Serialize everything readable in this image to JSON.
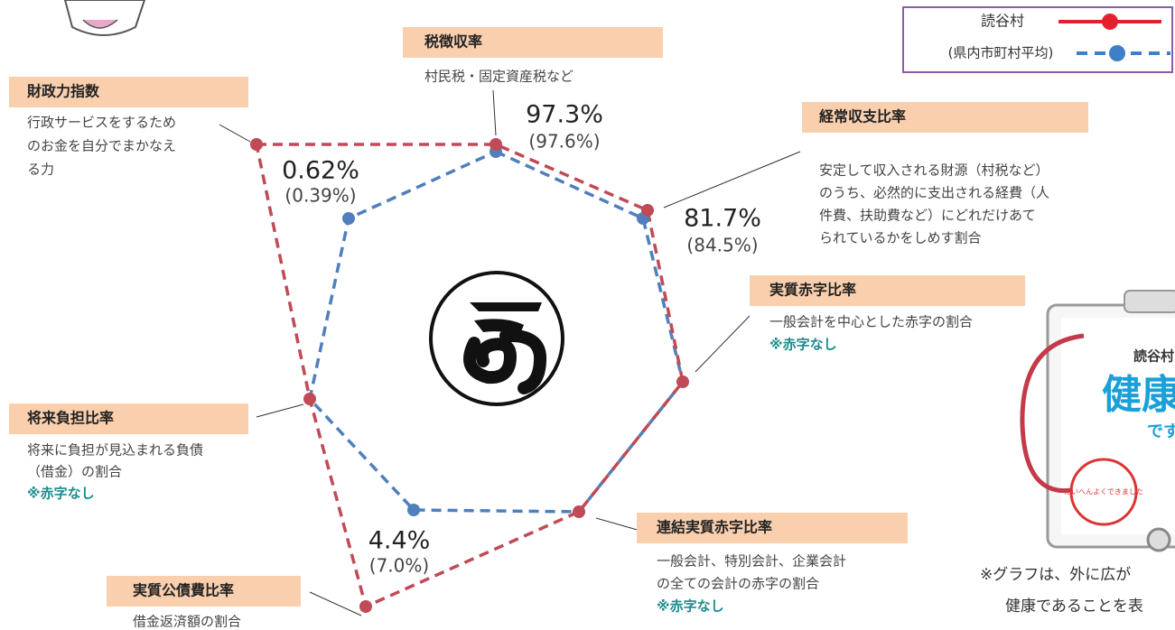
{
  "legend": {
    "items": [
      {
        "name": "読谷村"
      },
      {
        "name": "(県内市町村平均)"
      }
    ]
  },
  "indicators": [
    {
      "title": "税徴収率",
      "description": [
        "村民税・固定資産税など"
      ],
      "value": "97.3%",
      "average": "(97.6%)"
    },
    {
      "title": "経常収支比率",
      "description": [
        "安定して収入される財源（村税など）",
        "のうち、必然的に支出される経費（人",
        "件費、扶助費など）にどれだけあて",
        "られているかをしめす割合"
      ],
      "value": "81.7%",
      "average": "(84.5%)"
    },
    {
      "title": "実質赤字比率",
      "description": [
        "一般会計を中心とした赤字の割合"
      ],
      "note": "※赤字なし"
    },
    {
      "title": "連結実質赤字比率",
      "description": [
        "一般会計、特別会計、企業会計",
        "の全ての会計の赤字の割合"
      ],
      "note": "※赤字なし"
    },
    {
      "title": "実質公債費比率",
      "description": [
        "借金返済額の割合"
      ],
      "value": "4.4%",
      "average": "(7.0%)"
    },
    {
      "title": "将来負担比率",
      "description": [
        "将来に負担が見込まれる負債",
        "（借金）の割合"
      ],
      "note": "※赤字なし"
    },
    {
      "title": "財政力指数",
      "description": [
        "行政サービスをするため",
        "のお金を自分でまかなえ",
        "る力"
      ],
      "value": "0.62%",
      "average": "(0.39%)"
    }
  ],
  "clipboard": {
    "name": "読谷村",
    "headline": "健康",
    "suffix": "です",
    "stamp": "たいへんよくできました"
  },
  "footnote": [
    "※グラフは、外に広が",
    "健康であることを表"
  ]
}
